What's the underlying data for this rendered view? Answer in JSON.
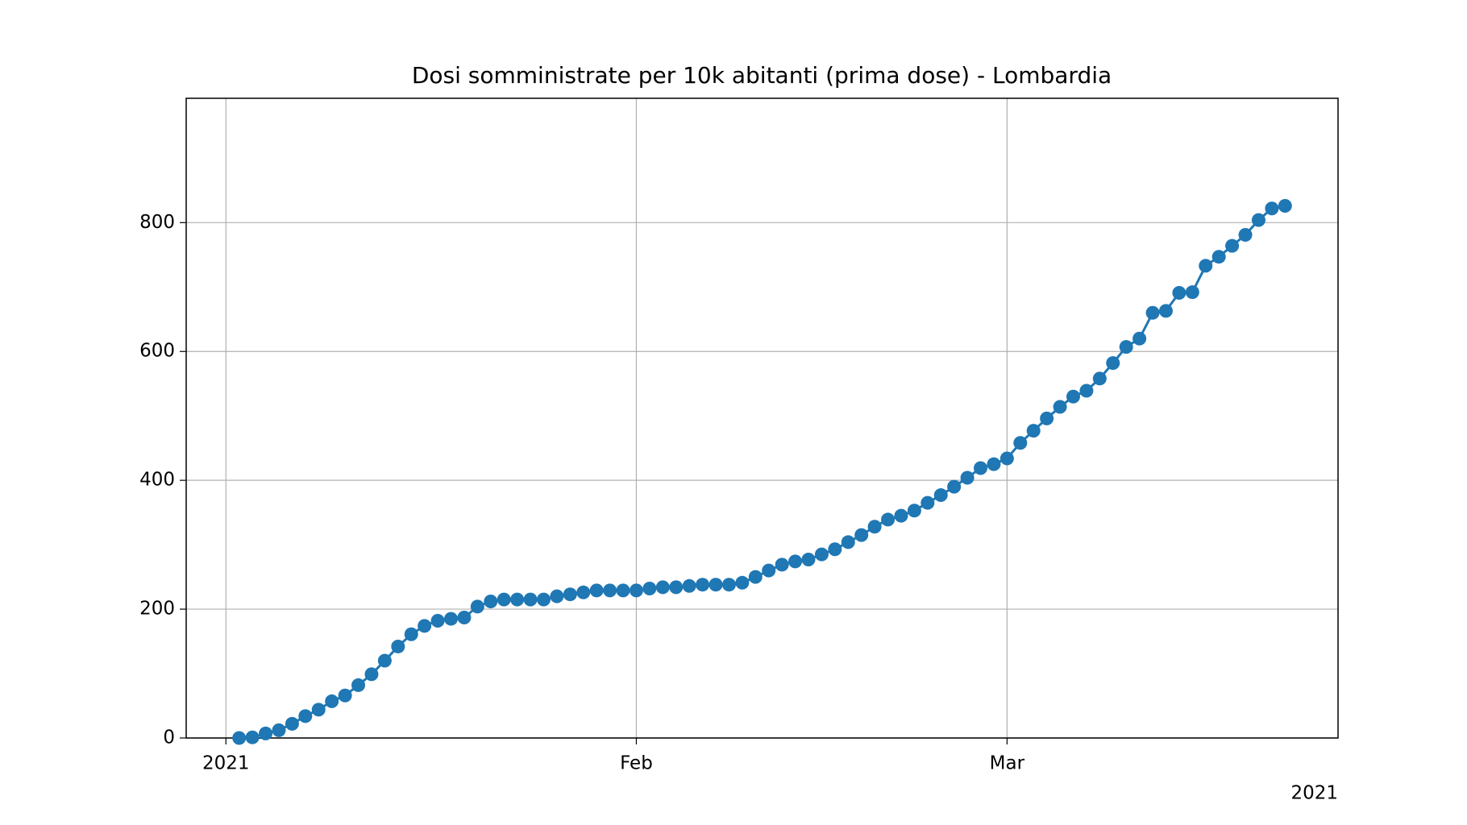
{
  "chart_data": {
    "type": "line",
    "title": "Dosi somministrate per 10k abitanti (prima dose) - Lombardia",
    "x": [
      "2021-01-02",
      "2021-01-03",
      "2021-01-04",
      "2021-01-05",
      "2021-01-06",
      "2021-01-07",
      "2021-01-08",
      "2021-01-09",
      "2021-01-10",
      "2021-01-11",
      "2021-01-12",
      "2021-01-13",
      "2021-01-14",
      "2021-01-15",
      "2021-01-16",
      "2021-01-17",
      "2021-01-18",
      "2021-01-19",
      "2021-01-20",
      "2021-01-21",
      "2021-01-22",
      "2021-01-23",
      "2021-01-24",
      "2021-01-25",
      "2021-01-26",
      "2021-01-27",
      "2021-01-28",
      "2021-01-29",
      "2021-01-30",
      "2021-01-31",
      "2021-02-01",
      "2021-02-02",
      "2021-02-03",
      "2021-02-04",
      "2021-02-05",
      "2021-02-06",
      "2021-02-07",
      "2021-02-08",
      "2021-02-09",
      "2021-02-10",
      "2021-02-11",
      "2021-02-12",
      "2021-02-13",
      "2021-02-14",
      "2021-02-15",
      "2021-02-16",
      "2021-02-17",
      "2021-02-18",
      "2021-02-19",
      "2021-02-20",
      "2021-02-21",
      "2021-02-22",
      "2021-02-23",
      "2021-02-24",
      "2021-02-25",
      "2021-02-26",
      "2021-02-27",
      "2021-02-28",
      "2021-03-01",
      "2021-03-02",
      "2021-03-03",
      "2021-03-04",
      "2021-03-05",
      "2021-03-06",
      "2021-03-07",
      "2021-03-08",
      "2021-03-09",
      "2021-03-10",
      "2021-03-11",
      "2021-03-12",
      "2021-03-13",
      "2021-03-14",
      "2021-03-15",
      "2021-03-16",
      "2021-03-17",
      "2021-03-18",
      "2021-03-19",
      "2021-03-20",
      "2021-03-21",
      "2021-03-22"
    ],
    "series": [
      {
        "color": "#1f77b4",
        "values": [
          0,
          1,
          7,
          12,
          22,
          34,
          44,
          57,
          66,
          82,
          99,
          120,
          142,
          161,
          174,
          182,
          185,
          187,
          204,
          212,
          215,
          215,
          215,
          215,
          220,
          223,
          226,
          229,
          229,
          229,
          229,
          232,
          234,
          234,
          236,
          238,
          238,
          238,
          241,
          250,
          260,
          269,
          274,
          277,
          285,
          293,
          304,
          315,
          328,
          339,
          345,
          353,
          365,
          377,
          390,
          404,
          419,
          425,
          434,
          458,
          477,
          496,
          514,
          530,
          539,
          558,
          582,
          607,
          620,
          660,
          663,
          691,
          692,
          733,
          747,
          764,
          781,
          804,
          822,
          826
        ]
      }
    ],
    "xlim": [
      "2020-12-29",
      "2021-03-26"
    ],
    "xticks": [
      {
        "value": "2021-01-01",
        "label": "2021"
      },
      {
        "value": "2021-02-01",
        "label": "Feb"
      },
      {
        "value": "2021-03-01",
        "label": "Mar"
      }
    ],
    "x_offset_label": "2021",
    "ylim": [
      0,
      993
    ],
    "yticks": [
      0,
      200,
      400,
      600,
      800
    ],
    "grid": true
  }
}
